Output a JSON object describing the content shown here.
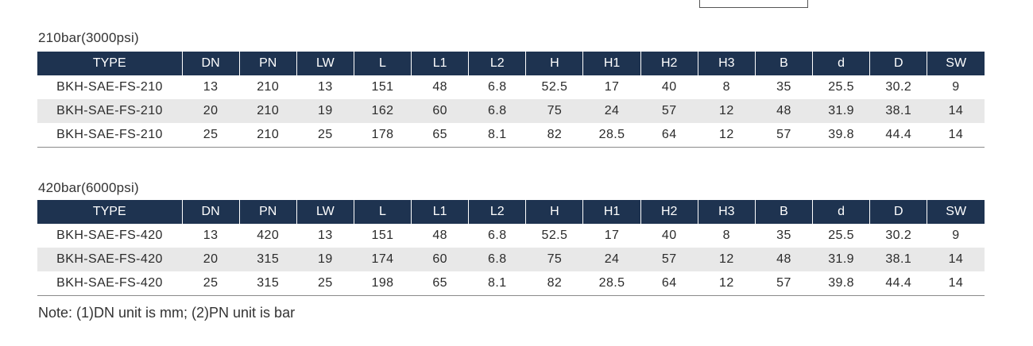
{
  "columns": [
    "TYPE",
    "DN",
    "PN",
    "LW",
    "L",
    "L1",
    "L2",
    "H",
    "H1",
    "H2",
    "H3",
    "B",
    "d",
    "D",
    "SW"
  ],
  "sections": [
    {
      "title": "210bar(3000psi)",
      "rows": [
        [
          "BKH-SAE-FS-210",
          "13",
          "210",
          "13",
          "151",
          "48",
          "6.8",
          "52.5",
          "17",
          "40",
          "8",
          "35",
          "25.5",
          "30.2",
          "9"
        ],
        [
          "BKH-SAE-FS-210",
          "20",
          "210",
          "19",
          "162",
          "60",
          "6.8",
          "75",
          "24",
          "57",
          "12",
          "48",
          "31.9",
          "38.1",
          "14"
        ],
        [
          "BKH-SAE-FS-210",
          "25",
          "210",
          "25",
          "178",
          "65",
          "8.1",
          "82",
          "28.5",
          "64",
          "12",
          "57",
          "39.8",
          "44.4",
          "14"
        ]
      ]
    },
    {
      "title": "420bar(6000psi)",
      "rows": [
        [
          "BKH-SAE-FS-420",
          "13",
          "420",
          "13",
          "151",
          "48",
          "6.8",
          "52.5",
          "17",
          "40",
          "8",
          "35",
          "25.5",
          "30.2",
          "9"
        ],
        [
          "BKH-SAE-FS-420",
          "20",
          "315",
          "19",
          "174",
          "60",
          "6.8",
          "75",
          "24",
          "57",
          "12",
          "48",
          "31.9",
          "38.1",
          "14"
        ],
        [
          "BKH-SAE-FS-420",
          "25",
          "315",
          "25",
          "198",
          "65",
          "8.1",
          "82",
          "28.5",
          "64",
          "12",
          "57",
          "39.8",
          "44.4",
          "14"
        ]
      ]
    }
  ],
  "note": "Note: (1)DN unit is mm; (2)PN unit is bar"
}
